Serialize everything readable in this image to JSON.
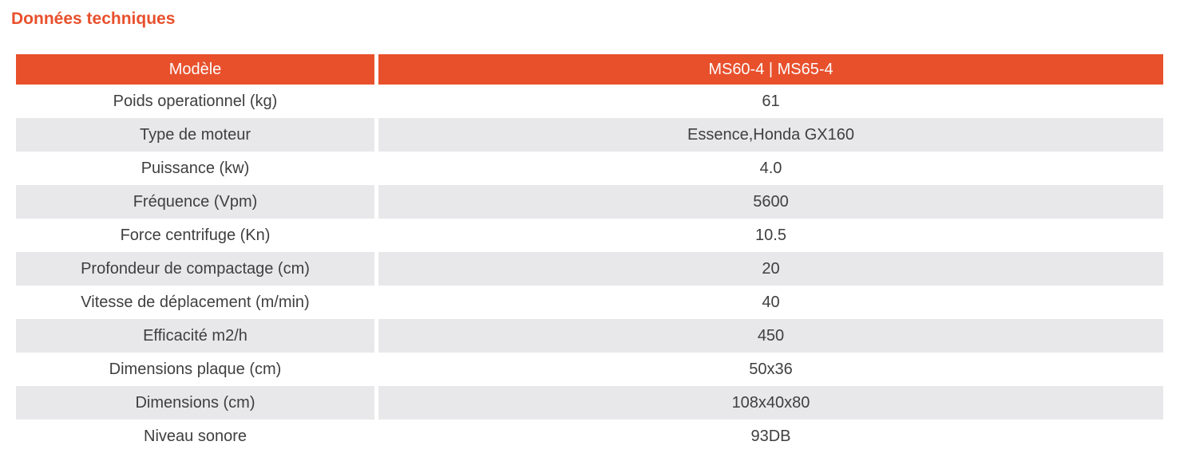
{
  "page": {
    "title": "Données techniques"
  },
  "colors": {
    "accent_orange": "#e8502c",
    "header_text": "#fbfbfb",
    "row_alt_gray": "#e8e8eb",
    "row_text": "#3f3f3f",
    "background": "#ffffff"
  },
  "table": {
    "header": {
      "model_label": "Modèle",
      "model_value": "MS60-4 | MS65-4"
    },
    "rows": [
      {
        "label": "Poids operationnel (kg)",
        "value": "61"
      },
      {
        "label": "Type de moteur",
        "value": "Essence,Honda GX160"
      },
      {
        "label": "Puissance (kw)",
        "value": "4.0"
      },
      {
        "label": "Fréquence (Vpm)",
        "value": "5600"
      },
      {
        "label": "Force centrifuge (Kn)",
        "value": "10.5"
      },
      {
        "label": "Profondeur de compactage (cm)",
        "value": "20"
      },
      {
        "label": "Vitesse de déplacement (m/min)",
        "value": "40"
      },
      {
        "label": "Efficacité m2/h",
        "value": "450"
      },
      {
        "label": "Dimensions plaque (cm)",
        "value": "50x36"
      },
      {
        "label": "Dimensions  (cm)",
        "value": "108x40x80"
      },
      {
        "label": "Niveau sonore",
        "value": "93DB"
      }
    ]
  }
}
